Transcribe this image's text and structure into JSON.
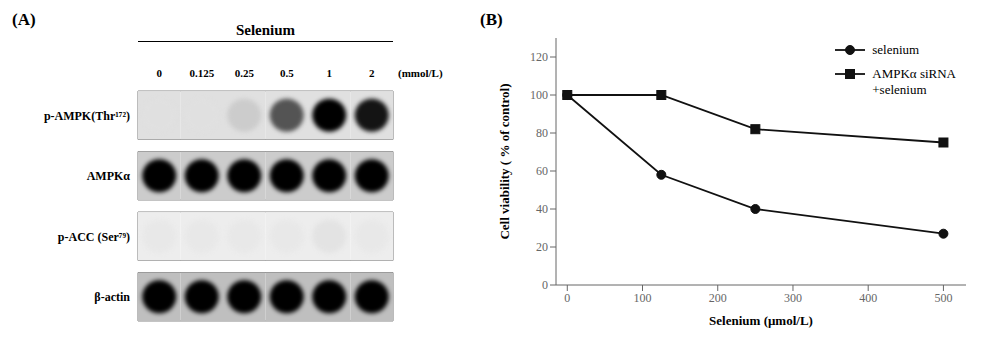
{
  "chart_data": [
    {
      "type": "heatmap",
      "panel_label": "(A)",
      "title": "Selenium",
      "xlabel": "(mmol/L)",
      "categories": [
        "0",
        "0.125",
        "0.25",
        "0.5",
        "1",
        "2"
      ],
      "rows": [
        "p-AMPK(Thr¹⁷²)",
        "AMPKα",
        "p-ACC (Ser⁷⁹)",
        "β-actin"
      ],
      "cells": [
        [
          0.0,
          0.0,
          0.08,
          0.55,
          0.95,
          0.8
        ],
        [
          0.88,
          0.85,
          0.9,
          0.88,
          0.88,
          0.88
        ],
        [
          0.02,
          0.02,
          0.02,
          0.02,
          0.04,
          0.02
        ],
        [
          0.95,
          0.93,
          0.92,
          0.92,
          0.93,
          0.92
        ]
      ],
      "row_background": [
        0.88,
        0.8,
        0.93,
        0.75
      ]
    },
    {
      "type": "line",
      "panel_label": "(B)",
      "xlabel": "Selenium (μmol/L)",
      "ylabel": "Cell viability ( % of control)",
      "x": [
        0,
        125,
        250,
        500
      ],
      "series": [
        {
          "name": "selenium",
          "color": "#111111",
          "marker": "circle",
          "values": [
            100,
            58,
            40,
            27
          ]
        },
        {
          "name": "AMPKα siRNA\n+selenium",
          "color": "#111111",
          "marker": "square",
          "values": [
            100,
            100,
            82,
            75
          ]
        }
      ],
      "xlim": [
        -15,
        530
      ],
      "xticks": [
        0,
        100,
        200,
        300,
        400,
        500
      ],
      "ylim": [
        0,
        130
      ],
      "yticks": [
        0,
        20,
        40,
        60,
        80,
        100,
        120
      ],
      "legend": "upper right",
      "grid": false
    }
  ]
}
